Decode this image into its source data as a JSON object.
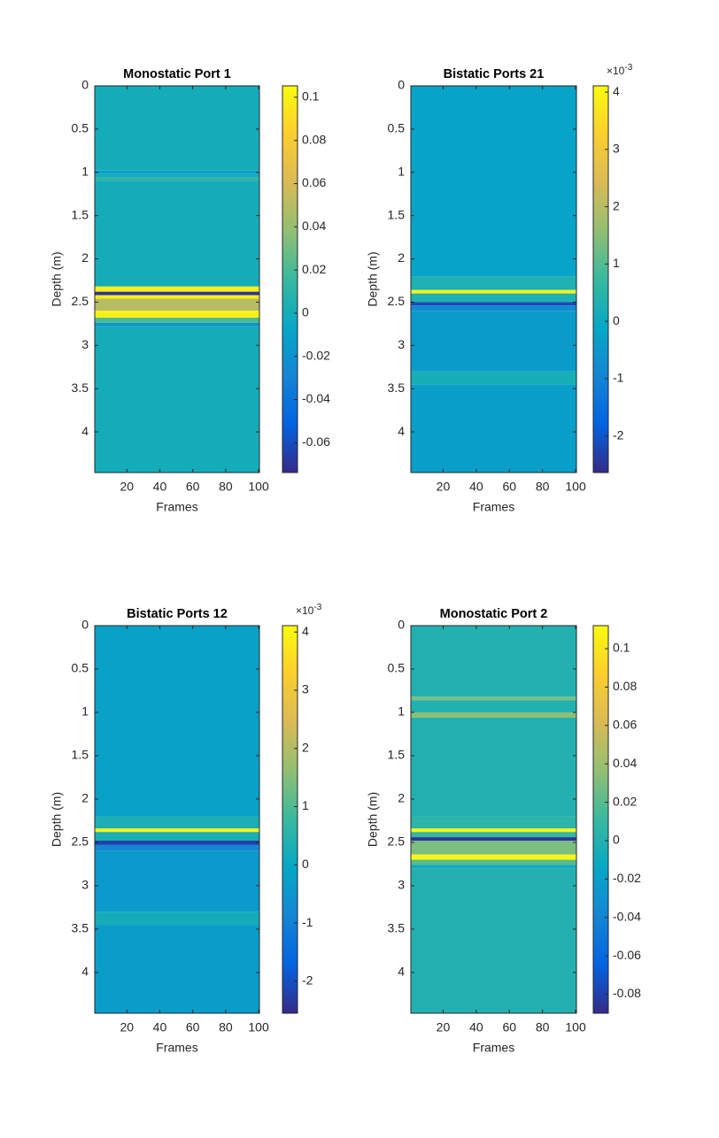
{
  "chart_data": [
    {
      "type": "heatmap",
      "title": "Monostatic Port 1",
      "xlabel": "Frames",
      "ylabel": "Depth (m)",
      "xlim": [
        0.5,
        100.5
      ],
      "xticks": [
        20,
        40,
        60,
        80,
        100
      ],
      "ylim": [
        0,
        4.47
      ],
      "yticks": [
        0,
        0.5,
        1,
        1.5,
        2,
        2.5,
        3,
        3.5,
        4
      ],
      "depth_bins": [
        0,
        0.98,
        1.02,
        1.06,
        1.1,
        2.32,
        2.38,
        2.42,
        2.46,
        2.6,
        2.68,
        2.74,
        2.78,
        4.47
      ],
      "values": [
        0,
        -0.012,
        0,
        0.012,
        0,
        0.1,
        -0.07,
        0.1,
        0.05,
        0.1,
        0.02,
        -0.02,
        0
      ],
      "clim": [
        -0.0738,
        0.1053
      ],
      "cticks": [
        -0.06,
        -0.04,
        -0.02,
        0,
        0.02,
        0.04,
        0.06,
        0.08,
        0.1
      ],
      "colormap": [
        "#352a87",
        "#0363e1",
        "#1485d4",
        "#06a7c6",
        "#38b99e",
        "#92bf73",
        "#d9ba56",
        "#fcce2e",
        "#f9fb0e"
      ]
    },
    {
      "type": "heatmap",
      "title": "Bistatic Ports 21",
      "xlabel": "Frames",
      "ylabel": "Depth (m)",
      "xlim": [
        0.5,
        100.5
      ],
      "xticks": [
        20,
        40,
        60,
        80,
        100
      ],
      "ylim": [
        0,
        4.47
      ],
      "yticks": [
        0,
        0.5,
        1,
        1.5,
        2,
        2.5,
        3,
        3.5,
        4
      ],
      "depth_bins": [
        0,
        2.2,
        2.36,
        2.4,
        2.5,
        2.54,
        2.6,
        3.3,
        3.45,
        4.47
      ],
      "values": [
        -0.0002,
        0.0003,
        0.004,
        0.0003,
        -0.0022,
        -0.0008,
        -0.0004,
        0.0002,
        -0.0003
      ],
      "clim": [
        -0.00264,
        0.00411
      ],
      "cticks": [
        {
          "value": -0.002,
          "label": "-2"
        },
        {
          "value": -0.001,
          "label": "-1"
        },
        0,
        {
          "value": 0.001,
          "label": "1"
        },
        {
          "value": 0.002,
          "label": "2"
        },
        {
          "value": 0.003,
          "label": "3"
        },
        {
          "value": 0.004,
          "label": "4"
        }
      ],
      "colorbar_multiplier": {
        "base": "×10",
        "exponent": "-3"
      },
      "colormap": [
        "#352a87",
        "#0363e1",
        "#1485d4",
        "#06a7c6",
        "#38b99e",
        "#92bf73",
        "#d9ba56",
        "#fcce2e",
        "#f9fb0e"
      ]
    },
    {
      "type": "heatmap",
      "title": "Bistatic Ports 12",
      "xlabel": "Frames",
      "ylabel": "Depth (m)",
      "xlim": [
        0.5,
        100.5
      ],
      "xticks": [
        20,
        40,
        60,
        80,
        100
      ],
      "ylim": [
        0,
        4.47
      ],
      "yticks": [
        0,
        0.5,
        1,
        1.5,
        2,
        2.5,
        3,
        3.5,
        4
      ],
      "depth_bins": [
        0,
        2.2,
        2.34,
        2.38,
        2.48,
        2.53,
        2.6,
        3.3,
        3.45,
        4.47
      ],
      "values": [
        -0.0002,
        0.0003,
        0.004,
        0.0003,
        -0.0022,
        -0.0008,
        -0.0004,
        0.0002,
        -0.0003
      ],
      "clim": [
        -0.00255,
        0.00411
      ],
      "cticks": [
        {
          "value": -0.002,
          "label": "-2"
        },
        {
          "value": -0.001,
          "label": "-1"
        },
        0,
        {
          "value": 0.001,
          "label": "1"
        },
        {
          "value": 0.002,
          "label": "2"
        },
        {
          "value": 0.003,
          "label": "3"
        },
        {
          "value": 0.004,
          "label": "4"
        }
      ],
      "colorbar_multiplier": {
        "base": "×10",
        "exponent": "-3"
      },
      "colormap": [
        "#352a87",
        "#0363e1",
        "#1485d4",
        "#06a7c6",
        "#38b99e",
        "#92bf73",
        "#d9ba56",
        "#fcce2e",
        "#f9fb0e"
      ]
    },
    {
      "type": "heatmap",
      "title": "Monostatic Port 2",
      "xlabel": "Frames",
      "ylabel": "Depth (m)",
      "xlim": [
        0.5,
        100.5
      ],
      "xticks": [
        20,
        40,
        60,
        80,
        100
      ],
      "ylim": [
        0,
        4.47
      ],
      "yticks": [
        0,
        0.5,
        1,
        1.5,
        2,
        2.5,
        3,
        3.5,
        4
      ],
      "depth_bins": [
        0,
        0.82,
        0.86,
        1.0,
        1.06,
        2.2,
        2.34,
        2.38,
        2.44,
        2.48,
        2.64,
        2.7,
        2.76,
        2.8,
        4.47
      ],
      "values": [
        0,
        0.03,
        0,
        0.035,
        0,
        0.005,
        0.11,
        0.01,
        -0.085,
        0.03,
        0.11,
        0.02,
        -0.01,
        0
      ],
      "clim": [
        -0.0899,
        0.112
      ],
      "cticks": [
        -0.08,
        -0.06,
        -0.04,
        -0.02,
        0,
        0.02,
        0.04,
        0.06,
        0.08,
        0.1
      ],
      "colormap": [
        "#352a87",
        "#0363e1",
        "#1485d4",
        "#06a7c6",
        "#38b99e",
        "#92bf73",
        "#d9ba56",
        "#fcce2e",
        "#f9fb0e"
      ]
    }
  ]
}
